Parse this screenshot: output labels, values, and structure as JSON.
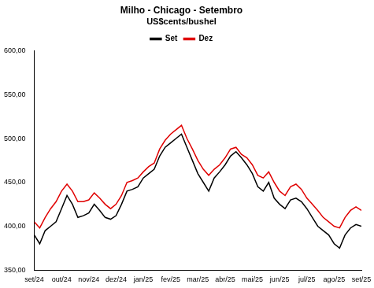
{
  "chart_data": {
    "type": "line",
    "title": "Milho - Chicago - Setembro",
    "subtitle": "US$cents/bushel",
    "categories": [
      "set/24",
      null,
      null,
      null,
      null,
      "out/24",
      null,
      null,
      null,
      null,
      "nov/24",
      null,
      null,
      null,
      null,
      "dez/24",
      null,
      null,
      null,
      null,
      "jan/25",
      null,
      null,
      null,
      null,
      "fev/25",
      null,
      null,
      null,
      null,
      "mar/25",
      null,
      null,
      null,
      null,
      "abr/25",
      null,
      null,
      null,
      null,
      "mai/25",
      null,
      null,
      null,
      null,
      "jun/25",
      null,
      null,
      null,
      null,
      "jul/25",
      null,
      null,
      null,
      null,
      "ago/25",
      null,
      null,
      null,
      null,
      "set/25"
    ],
    "series": [
      {
        "name": "Set",
        "color": "#000000",
        "values": [
          390,
          380,
          395,
          400,
          405,
          420,
          435,
          425,
          410,
          412,
          415,
          425,
          418,
          410,
          408,
          412,
          425,
          440,
          442,
          445,
          455,
          460,
          465,
          480,
          490,
          495,
          500,
          505,
          490,
          475,
          460,
          450,
          440,
          455,
          462,
          470,
          480,
          485,
          478,
          470,
          460,
          445,
          440,
          450,
          432,
          425,
          420,
          430,
          432,
          428,
          420,
          410,
          400,
          395,
          390,
          380,
          375,
          390,
          398,
          402,
          400
        ]
      },
      {
        "name": "Dez",
        "color": "#e00000",
        "values": [
          405,
          398,
          410,
          420,
          428,
          440,
          448,
          440,
          428,
          428,
          430,
          438,
          432,
          425,
          420,
          425,
          435,
          450,
          452,
          455,
          462,
          468,
          472,
          488,
          498,
          505,
          510,
          515,
          500,
          488,
          475,
          465,
          458,
          465,
          470,
          478,
          488,
          490,
          482,
          478,
          470,
          458,
          455,
          462,
          450,
          440,
          435,
          445,
          448,
          442,
          432,
          425,
          418,
          410,
          405,
          400,
          398,
          410,
          418,
          422,
          418
        ]
      }
    ],
    "ylim": [
      350,
      600
    ],
    "yticks": [
      {
        "value": 350,
        "label": "350,00"
      },
      {
        "value": 400,
        "label": "400,00"
      },
      {
        "value": 450,
        "label": "450,00"
      },
      {
        "value": 500,
        "label": "500,00"
      },
      {
        "value": 550,
        "label": "550,00"
      },
      {
        "value": 600,
        "label": "600,00"
      }
    ],
    "grid": false,
    "legend": "top"
  }
}
